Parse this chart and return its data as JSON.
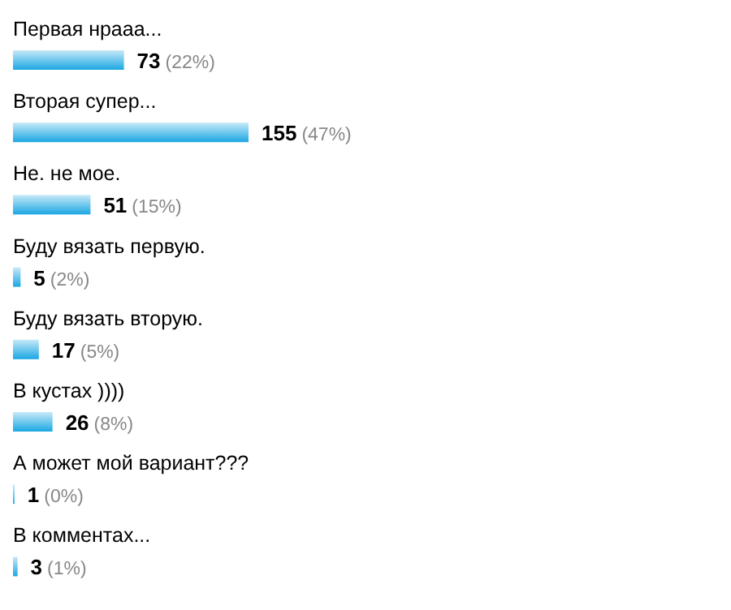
{
  "chart_data": {
    "type": "bar",
    "orientation": "horizontal",
    "categories": [
      "Первая нрааа...",
      "Вторая супер...",
      "Не. не мое.",
      "Буду вязать первую.",
      "Буду вязать вторую.",
      "В кустах ))))",
      "А может мой вариант???",
      "В комментах..."
    ],
    "values": [
      73,
      155,
      51,
      5,
      17,
      26,
      1,
      3
    ],
    "value_labels": [
      "73 (22%)",
      "155 (47%)",
      "51 (15%)",
      "5 (2%)",
      "17 (5%)",
      "26 (8%)",
      "1 (0%)",
      "3 (1%)"
    ],
    "color": "#1ba7e3"
  }
}
